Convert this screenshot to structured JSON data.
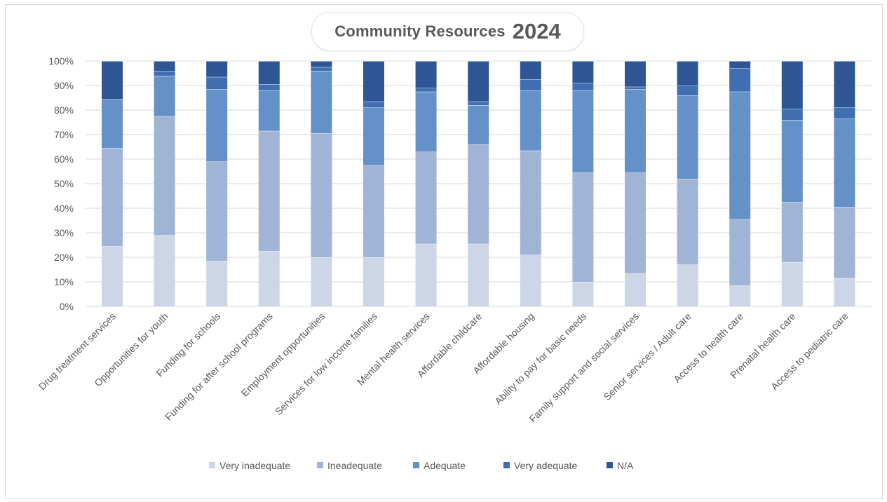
{
  "chart_data": {
    "type": "bar",
    "stacked": true,
    "percent_stacked": true,
    "title": "Community Resources",
    "title_year": "2024",
    "ylim": [
      0,
      100
    ],
    "y_ticks": [
      "0%",
      "10%",
      "20%",
      "30%",
      "40%",
      "50%",
      "60%",
      "70%",
      "80%",
      "90%",
      "100%"
    ],
    "grid": true,
    "legend_position": "bottom",
    "categories": [
      "Drug treatment services",
      "Opportunities for youth",
      "Funding for schools",
      "Funding for after school programs",
      "Employment opportunities",
      "Services for low income families",
      "Mental health services",
      "Affordable childcare",
      "Affordable housing",
      "Ability to pay for basic needs",
      "Family support and social services",
      "Senior services / Adult care",
      "Access to health care",
      "Prenatal health care",
      "Access to pediatric care"
    ],
    "series": [
      {
        "name": "Very inadequate",
        "color": "#cdd6e7",
        "values": [
          24.5,
          29,
          18.5,
          22.5,
          20,
          20,
          25.5,
          25.5,
          21,
          10,
          13.5,
          17,
          8.5,
          18,
          11.5
        ]
      },
      {
        "name": "Ineadequate",
        "color": "#a0b4d6",
        "values": [
          40,
          48.5,
          40.5,
          49,
          50.5,
          37.5,
          37.5,
          40.5,
          42.5,
          44.5,
          41,
          35,
          27,
          24.5,
          29
        ]
      },
      {
        "name": "Adequate",
        "color": "#6591c9",
        "values": [
          20,
          16.5,
          29.5,
          16.5,
          25.5,
          23.5,
          24.5,
          16,
          24.5,
          33.5,
          34,
          34,
          52,
          33.5,
          36
        ]
      },
      {
        "name": "Very adequate",
        "color": "#3f6eb3",
        "values": [
          0,
          2,
          5,
          2.5,
          1.5,
          2.5,
          1.5,
          1.5,
          4.5,
          3,
          1,
          4,
          9.5,
          4.5,
          4.5
        ]
      },
      {
        "name": "N/A",
        "color": "#2f5694",
        "values": [
          15.5,
          4,
          6.5,
          9.5,
          2.5,
          16.5,
          11,
          16.5,
          7.5,
          9,
          10.5,
          10,
          3,
          19.5,
          19
        ]
      }
    ]
  }
}
